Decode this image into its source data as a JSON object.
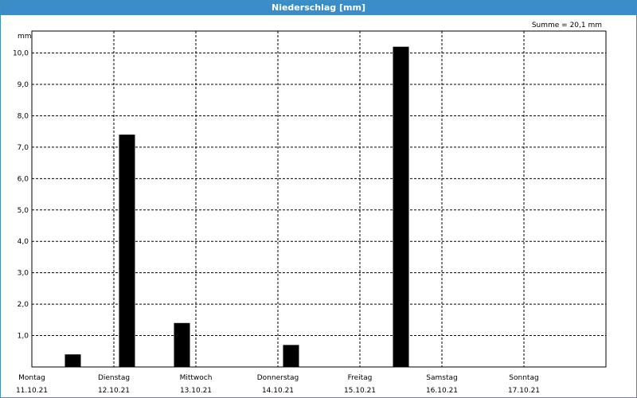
{
  "title": "Niederschlag [mm]",
  "summary": "Summe = 20,1 mm",
  "chart_data": {
    "type": "bar",
    "title": "Niederschlag [mm]",
    "ylabel": "mm",
    "ylim": [
      0,
      10.7
    ],
    "yticks": [
      "1,0",
      "2,0",
      "3,0",
      "4,0",
      "5,0",
      "6,0",
      "7,0",
      "8,0",
      "9,0",
      "10,0"
    ],
    "days": [
      {
        "name": "Montag",
        "date": "11.10.21"
      },
      {
        "name": "Dienstag",
        "date": "12.10.21"
      },
      {
        "name": "Mittwoch",
        "date": "13.10.21"
      },
      {
        "name": "Donnerstag",
        "date": "14.10.21"
      },
      {
        "name": "Freitag",
        "date": "15.10.21"
      },
      {
        "name": "Samstag",
        "date": "16.10.21"
      },
      {
        "name": "Sonntag",
        "date": "17.10.21"
      }
    ],
    "bars": [
      {
        "day_index": 0.5,
        "value": 0.4
      },
      {
        "day_index": 1.16,
        "value": 7.4
      },
      {
        "day_index": 1.83,
        "value": 1.4
      },
      {
        "day_index": 3.16,
        "value": 0.7
      },
      {
        "day_index": 4.5,
        "value": 10.2
      }
    ],
    "grid": true,
    "bar_color": "#000000"
  }
}
